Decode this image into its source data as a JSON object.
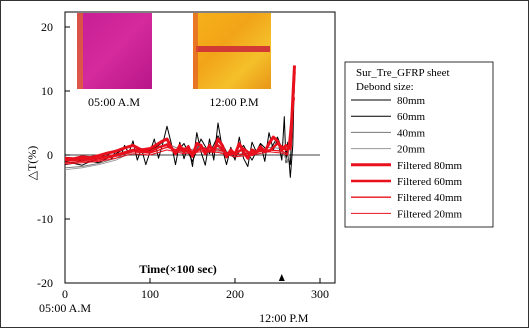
{
  "chart_data": {
    "type": "line",
    "title": "",
    "xlabel": "Time(×100 sec)",
    "ylabel": "△T(%)",
    "xlim": [
      0,
      300
    ],
    "ylim": [
      -20,
      20
    ],
    "xticks": [
      0,
      100,
      200,
      300
    ],
    "yticks": [
      -20,
      -10,
      0,
      10,
      20
    ],
    "grid": false,
    "time_labels": [
      {
        "x": 0,
        "text": "05:00 A.M"
      },
      {
        "x": 255,
        "text": "12:00 P.M"
      }
    ],
    "thermal_images": [
      {
        "caption": "05:00 A.M",
        "palette": "magenta"
      },
      {
        "caption": "12:00 P.M",
        "palette": "orange"
      }
    ],
    "legend": {
      "title_lines": [
        "Sur_Tre_GFRP sheet",
        "Debond size:"
      ],
      "placement": "right"
    },
    "series": [
      {
        "name": "80mm",
        "color": "#000000",
        "width": 1.0,
        "filtered": false,
        "x": [
          0,
          10,
          20,
          30,
          40,
          50,
          55,
          60,
          65,
          70,
          75,
          80,
          85,
          90,
          95,
          100,
          105,
          110,
          115,
          120,
          125,
          130,
          135,
          140,
          145,
          150,
          155,
          160,
          165,
          170,
          175,
          180,
          185,
          190,
          195,
          200,
          205,
          210,
          215,
          220,
          225,
          230,
          235,
          240,
          245,
          250,
          255,
          258,
          260,
          262,
          265,
          268,
          270
        ],
        "values": [
          -1,
          -1.2,
          -0.8,
          -1.1,
          -0.5,
          0.2,
          -0.6,
          0.8,
          -0.4,
          1.5,
          0.3,
          2.2,
          -0.8,
          1,
          -1.5,
          0.5,
          2.5,
          -0.5,
          1.8,
          4.5,
          1.8,
          -1.5,
          2,
          -0.6,
          1.5,
          -1.8,
          3.5,
          0.5,
          -1.6,
          2.5,
          -0.8,
          5,
          1,
          -1.5,
          1.2,
          -0.8,
          2.8,
          -0.5,
          -1.8,
          2,
          0.5,
          1.8,
          -1,
          3.5,
          0.8,
          2.5,
          -0.8,
          6,
          -1.2,
          2,
          -3.5,
          1.5,
          13
        ]
      },
      {
        "name": "60mm",
        "color": "#000000",
        "width": 1.0,
        "filtered": false,
        "x": [
          0,
          10,
          20,
          30,
          40,
          50,
          60,
          70,
          80,
          90,
          100,
          110,
          120,
          130,
          140,
          150,
          160,
          170,
          180,
          190,
          200,
          210,
          220,
          230,
          240,
          250,
          255,
          260,
          265,
          270
        ],
        "values": [
          -1.5,
          -1.3,
          -1.6,
          -1,
          -1.2,
          -0.5,
          0.2,
          1,
          1.5,
          0.5,
          0.8,
          1.5,
          2.5,
          0.2,
          1.8,
          -1,
          2.5,
          0.2,
          3,
          0.5,
          -0.5,
          1.5,
          -0.8,
          1.8,
          0.5,
          2.8,
          1,
          0.8,
          -1.5,
          12
        ]
      },
      {
        "name": "40mm",
        "color": "#777777",
        "width": 0.9,
        "filtered": false,
        "x": [
          0,
          20,
          40,
          60,
          80,
          100,
          120,
          140,
          160,
          180,
          200,
          220,
          240,
          255,
          262,
          270
        ],
        "values": [
          -2,
          -1.8,
          -1.3,
          -0.5,
          0.8,
          0.5,
          1.8,
          0.6,
          1.2,
          1,
          0,
          0.5,
          1.2,
          1,
          -1,
          10
        ]
      },
      {
        "name": "20mm",
        "color": "#999999",
        "width": 0.9,
        "filtered": false,
        "x": [
          0,
          20,
          40,
          60,
          80,
          100,
          120,
          140,
          160,
          180,
          200,
          220,
          240,
          255,
          262,
          270
        ],
        "values": [
          -2.3,
          -2,
          -1.5,
          -0.8,
          0.5,
          0.3,
          1.2,
          0.3,
          0.8,
          0.6,
          -0.3,
          0.2,
          0.8,
          0.6,
          -1.2,
          9
        ]
      },
      {
        "name": "Filtered 80mm",
        "color": "#e8101c",
        "width": 3.0,
        "filtered": true,
        "x": [
          0,
          10,
          20,
          30,
          40,
          50,
          60,
          70,
          80,
          90,
          100,
          110,
          115,
          120,
          125,
          130,
          135,
          140,
          145,
          150,
          155,
          160,
          165,
          170,
          175,
          180,
          185,
          190,
          195,
          200,
          205,
          210,
          215,
          220,
          225,
          230,
          235,
          240,
          245,
          250,
          255,
          260,
          265,
          270
        ],
        "values": [
          -0.5,
          -0.6,
          -0.3,
          -0.4,
          -0.1,
          0.3,
          0.6,
          1.1,
          1.5,
          0.8,
          1,
          1.8,
          2.2,
          2.5,
          1.2,
          0.2,
          1.5,
          0.5,
          1.3,
          -0.2,
          1.8,
          1.5,
          0.2,
          1.5,
          0.5,
          2.5,
          1.5,
          -0.3,
          0.8,
          0.1,
          1.8,
          0.5,
          -0.5,
          0.8,
          0.4,
          1.3,
          0.5,
          1.8,
          2.8,
          2.2,
          0.8,
          1.5,
          1,
          14
        ]
      },
      {
        "name": "Filtered 60mm",
        "color": "#e8101c",
        "width": 2.5,
        "filtered": true,
        "x": [
          0,
          20,
          40,
          60,
          80,
          100,
          110,
          120,
          130,
          140,
          150,
          160,
          170,
          180,
          190,
          200,
          210,
          220,
          230,
          240,
          250,
          260,
          265,
          270
        ],
        "values": [
          -0.8,
          -0.7,
          -0.5,
          0,
          0.8,
          0.5,
          1.2,
          1.6,
          0.5,
          1,
          0,
          1.2,
          0.6,
          1.5,
          0.2,
          0.2,
          1,
          0,
          0.8,
          0.6,
          1.8,
          0.8,
          1.2,
          13
        ]
      },
      {
        "name": "Filtered 40mm",
        "color": "#e8101c",
        "width": 1.3,
        "filtered": true,
        "x": [
          0,
          20,
          40,
          60,
          80,
          100,
          120,
          140,
          160,
          180,
          200,
          220,
          240,
          255,
          262,
          270
        ],
        "values": [
          -1.2,
          -1,
          -0.8,
          -0.2,
          0.5,
          0.3,
          1.2,
          0.5,
          0.8,
          0.8,
          0,
          0.3,
          0.8,
          0.6,
          0.2,
          11
        ]
      },
      {
        "name": "Filtered 20mm",
        "color": "#e8101c",
        "width": 1.0,
        "filtered": true,
        "x": [
          0,
          20,
          40,
          60,
          80,
          100,
          120,
          140,
          160,
          180,
          200,
          220,
          240,
          255,
          262,
          270
        ],
        "values": [
          -1.4,
          -1.2,
          -1,
          -0.5,
          0.2,
          0,
          0.8,
          0.2,
          0.5,
          0.4,
          -0.3,
          0,
          0.5,
          0.3,
          0,
          9
        ]
      }
    ]
  }
}
